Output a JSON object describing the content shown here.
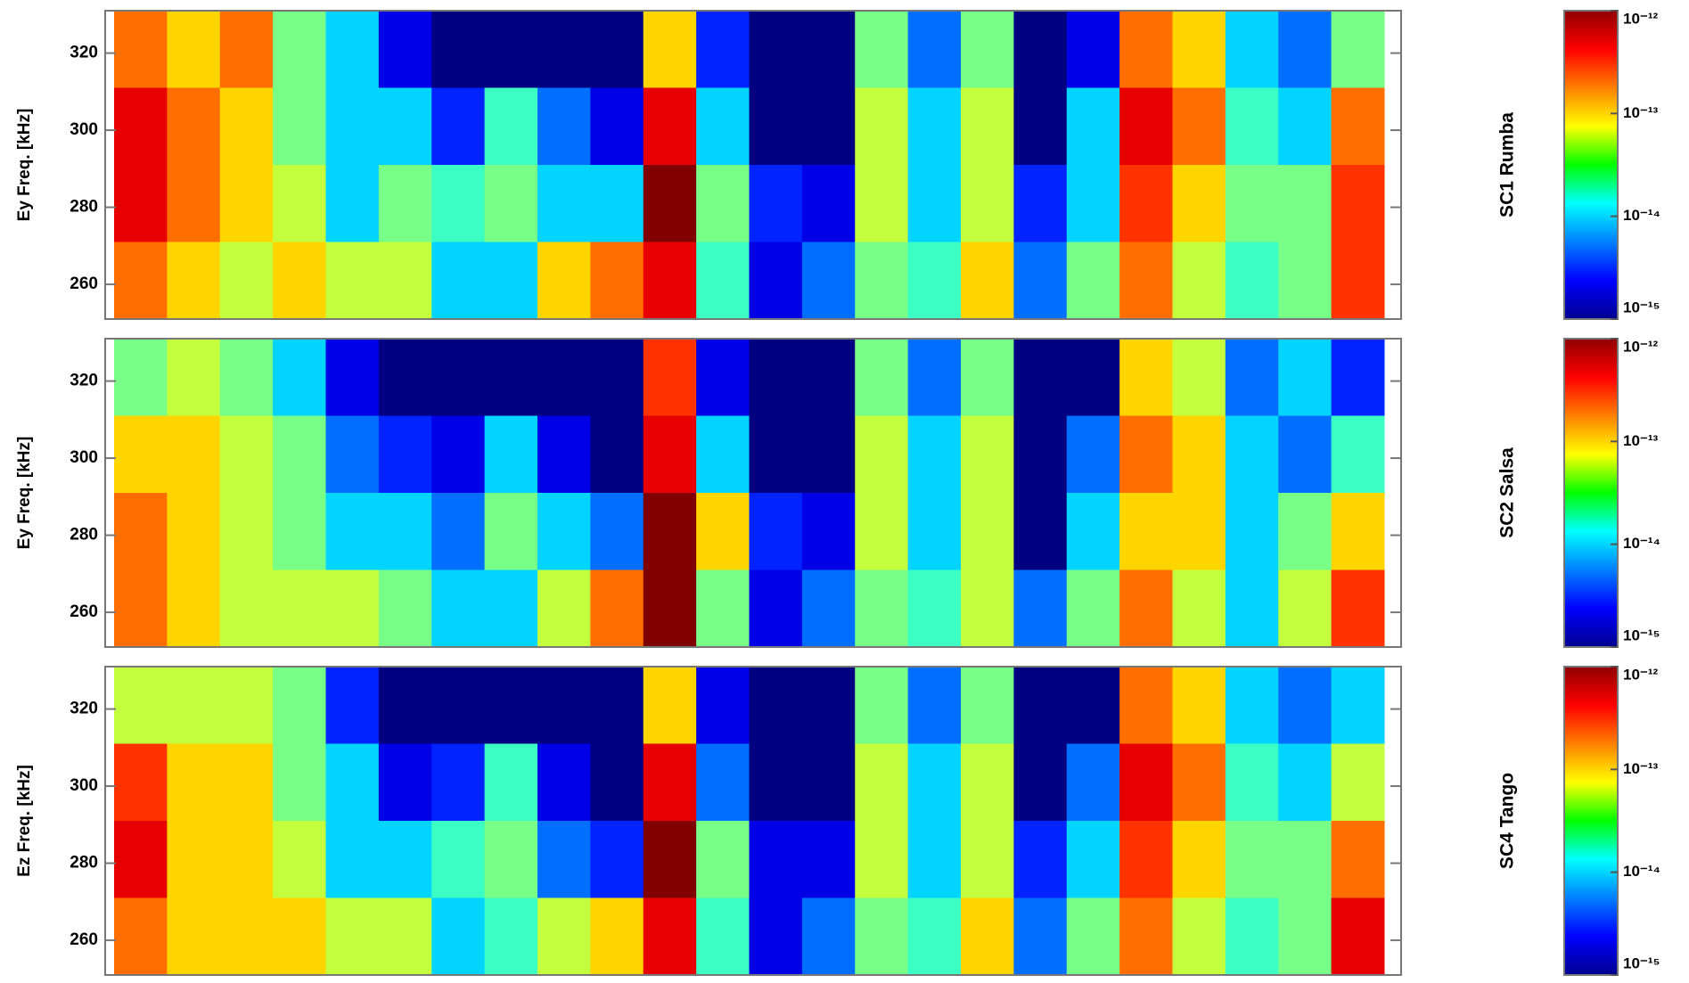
{
  "chart_data": [
    {
      "type": "heatmap",
      "title": "SC1 Rumba",
      "ylabel": "Ey Freq. [kHz]",
      "ylim": [
        251,
        331
      ],
      "yticks": [
        260,
        280,
        300,
        320
      ],
      "colormap": "jet",
      "zlim": [
        1e-15,
        1e-12
      ],
      "zlog": true,
      "zticks": [
        {
          "value": 1e-12,
          "label": "10⁻¹²"
        },
        {
          "value": 1e-13,
          "label": "10⁻¹³"
        },
        {
          "value": 1e-14,
          "label": "10⁻¹⁴"
        },
        {
          "value": 1e-15,
          "label": "10⁻¹⁵"
        }
      ],
      "z": [
        [
          2e-13,
          1e-13,
          2e-13,
          3e-14,
          1e-14,
          2e-15,
          1e-15,
          1e-15,
          1e-15,
          1e-15,
          1e-13,
          3e-15,
          1e-15,
          1e-15,
          3e-14,
          5e-15,
          3e-14,
          1e-15,
          2e-15,
          2e-13,
          1e-13,
          1e-14,
          5e-15,
          3e-14
        ],
        [
          5e-13,
          2e-13,
          1e-13,
          3e-14,
          1e-14,
          1e-14,
          3e-15,
          2e-14,
          5e-15,
          2e-15,
          5e-13,
          1e-14,
          1e-15,
          1e-15,
          5e-14,
          1e-14,
          5e-14,
          1e-15,
          1e-14,
          5e-13,
          2e-13,
          2e-14,
          1e-14,
          2e-13
        ],
        [
          5e-13,
          2e-13,
          1e-13,
          5e-14,
          1e-14,
          3e-14,
          2e-14,
          3e-14,
          1e-14,
          1e-14,
          1e-12,
          3e-14,
          3e-15,
          2e-15,
          5e-14,
          1e-14,
          5e-14,
          3e-15,
          1e-14,
          3e-13,
          1e-13,
          3e-14,
          3e-14,
          3e-13
        ],
        [
          2e-13,
          1e-13,
          5e-14,
          1e-13,
          5e-14,
          5e-14,
          1e-14,
          1e-14,
          1e-13,
          2e-13,
          5e-13,
          2e-14,
          2e-15,
          5e-15,
          3e-14,
          2e-14,
          1e-13,
          5e-15,
          3e-14,
          2e-13,
          5e-14,
          2e-14,
          3e-14,
          3e-13
        ]
      ]
    },
    {
      "type": "heatmap",
      "title": "SC2 Salsa",
      "ylabel": "Ey Freq. [kHz]",
      "ylim": [
        251,
        331
      ],
      "yticks": [
        260,
        280,
        300,
        320
      ],
      "colormap": "jet",
      "zlim": [
        1e-15,
        1e-12
      ],
      "zlog": true,
      "zticks": [
        {
          "value": 1e-12,
          "label": "10⁻¹²"
        },
        {
          "value": 1e-13,
          "label": "10⁻¹³"
        },
        {
          "value": 1e-14,
          "label": "10⁻¹⁴"
        },
        {
          "value": 1e-15,
          "label": "10⁻¹⁵"
        }
      ],
      "z": [
        [
          3e-14,
          5e-14,
          3e-14,
          1e-14,
          2e-15,
          1e-15,
          1e-15,
          1e-15,
          1e-15,
          1e-15,
          3e-13,
          2e-15,
          1e-15,
          1e-15,
          3e-14,
          5e-15,
          3e-14,
          1e-15,
          1e-15,
          1e-13,
          5e-14,
          5e-15,
          1e-14,
          3e-15
        ],
        [
          1e-13,
          1e-13,
          5e-14,
          3e-14,
          5e-15,
          3e-15,
          2e-15,
          1e-14,
          2e-15,
          1e-15,
          5e-13,
          1e-14,
          1e-15,
          1e-15,
          5e-14,
          1e-14,
          5e-14,
          1e-15,
          5e-15,
          2e-13,
          1e-13,
          1e-14,
          5e-15,
          2e-14
        ],
        [
          2e-13,
          1e-13,
          5e-14,
          3e-14,
          1e-14,
          1e-14,
          5e-15,
          3e-14,
          1e-14,
          5e-15,
          1e-12,
          1e-13,
          3e-15,
          2e-15,
          5e-14,
          1e-14,
          5e-14,
          1e-15,
          1e-14,
          1e-13,
          1e-13,
          1e-14,
          3e-14,
          1e-13
        ],
        [
          2e-13,
          1e-13,
          5e-14,
          5e-14,
          5e-14,
          3e-14,
          1e-14,
          1e-14,
          5e-14,
          2e-13,
          1e-12,
          3e-14,
          2e-15,
          5e-15,
          3e-14,
          2e-14,
          5e-14,
          5e-15,
          3e-14,
          2e-13,
          5e-14,
          1e-14,
          5e-14,
          3e-13
        ]
      ]
    },
    {
      "type": "heatmap",
      "title": "SC4 Tango",
      "ylabel": "Ez Freq. [kHz]",
      "ylim": [
        251,
        331
      ],
      "yticks": [
        260,
        280,
        300,
        320
      ],
      "colormap": "jet",
      "zlim": [
        1e-15,
        1e-12
      ],
      "zlog": true,
      "zticks": [
        {
          "value": 1e-12,
          "label": "10⁻¹²"
        },
        {
          "value": 1e-13,
          "label": "10⁻¹³"
        },
        {
          "value": 1e-14,
          "label": "10⁻¹⁴"
        },
        {
          "value": 1e-15,
          "label": "10⁻¹⁵"
        }
      ],
      "z": [
        [
          5e-14,
          5e-14,
          5e-14,
          3e-14,
          3e-15,
          1e-15,
          1e-15,
          1e-15,
          1e-15,
          1e-15,
          1e-13,
          2e-15,
          1e-15,
          1e-15,
          3e-14,
          5e-15,
          3e-14,
          1e-15,
          1e-15,
          2e-13,
          1e-13,
          1e-14,
          5e-15,
          1e-14
        ],
        [
          3e-13,
          1e-13,
          1e-13,
          3e-14,
          1e-14,
          2e-15,
          3e-15,
          2e-14,
          2e-15,
          1e-15,
          5e-13,
          5e-15,
          1e-15,
          1e-15,
          5e-14,
          1e-14,
          5e-14,
          1e-15,
          5e-15,
          5e-13,
          2e-13,
          2e-14,
          1e-14,
          5e-14
        ],
        [
          5e-13,
          1e-13,
          1e-13,
          5e-14,
          1e-14,
          1e-14,
          2e-14,
          3e-14,
          5e-15,
          3e-15,
          1e-12,
          3e-14,
          2e-15,
          2e-15,
          5e-14,
          1e-14,
          5e-14,
          3e-15,
          1e-14,
          3e-13,
          1e-13,
          3e-14,
          3e-14,
          2e-13
        ],
        [
          2e-13,
          1e-13,
          1e-13,
          1e-13,
          5e-14,
          5e-14,
          1e-14,
          2e-14,
          5e-14,
          1e-13,
          5e-13,
          2e-14,
          2e-15,
          5e-15,
          3e-14,
          2e-14,
          1e-13,
          5e-15,
          3e-14,
          2e-13,
          5e-14,
          2e-14,
          3e-14,
          5e-13
        ]
      ]
    }
  ]
}
